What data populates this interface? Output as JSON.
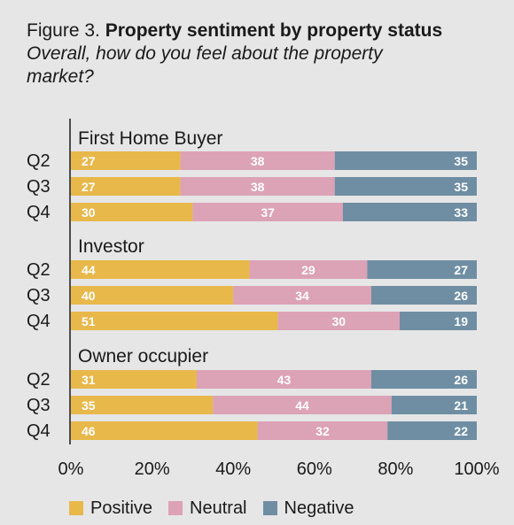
{
  "title": {
    "prefix": "Figure 3.",
    "main": "Property sentiment by property status",
    "subtitle": "Overall, how do you feel about the property market?"
  },
  "colors": {
    "positive": "#e8b84a",
    "neutral": "#dca2b6",
    "negative": "#6f8ea3",
    "axis": "#1a1a1a",
    "segment_text": "#ffffff"
  },
  "chart_data": {
    "type": "bar",
    "orientation": "horizontal",
    "stacked": true,
    "xlim": [
      0,
      100
    ],
    "x_ticks": [
      "0%",
      "20%",
      "40%",
      "60%",
      "80%",
      "100%"
    ],
    "grid": false,
    "legend_position": "bottom",
    "series": [
      {
        "name": "Positive"
      },
      {
        "name": "Neutral"
      },
      {
        "name": "Negative"
      }
    ],
    "groups": [
      {
        "name": "First Home Buyer",
        "rows": [
          {
            "label": "Q2",
            "values": [
              27,
              38,
              35
            ]
          },
          {
            "label": "Q3",
            "values": [
              27,
              38,
              35
            ]
          },
          {
            "label": "Q4",
            "values": [
              30,
              37,
              33
            ]
          }
        ]
      },
      {
        "name": "Investor",
        "rows": [
          {
            "label": "Q2",
            "values": [
              44,
              29,
              27
            ]
          },
          {
            "label": "Q3",
            "values": [
              40,
              34,
              26
            ]
          },
          {
            "label": "Q4",
            "values": [
              51,
              30,
              19
            ]
          }
        ]
      },
      {
        "name": "Owner occupier",
        "rows": [
          {
            "label": "Q2",
            "values": [
              31,
              43,
              26
            ]
          },
          {
            "label": "Q3",
            "values": [
              35,
              44,
              21
            ]
          },
          {
            "label": "Q4",
            "values": [
              46,
              32,
              22
            ]
          }
        ]
      }
    ]
  }
}
